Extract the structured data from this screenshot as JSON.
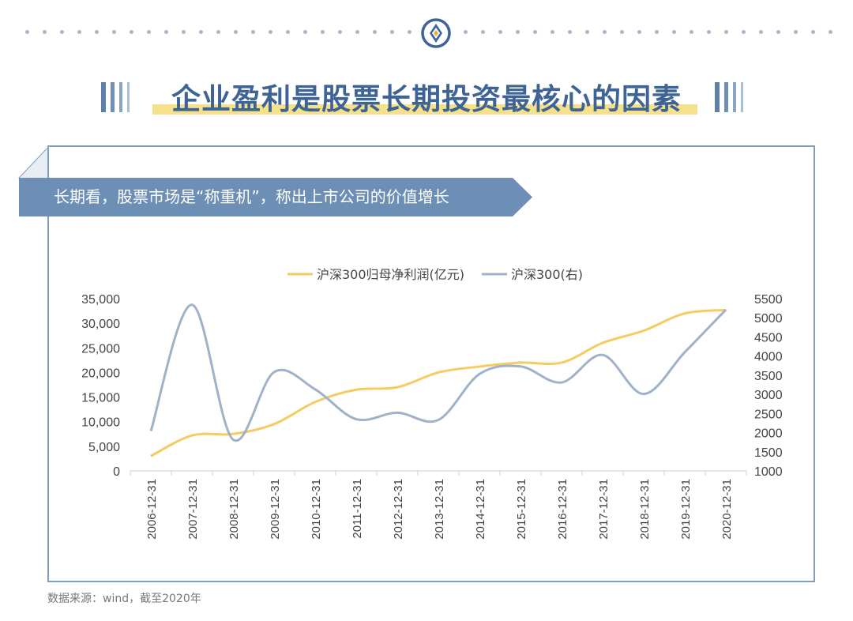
{
  "header": {
    "title": "企业盈利是股票长期投资最核心的因素",
    "banner_text": "长期看，股票市场是“称重机”，称出上市公司的价值增长",
    "logo_icon": "logo-icon"
  },
  "colors": {
    "accent_blue": "#6d8fb5",
    "title_blue": "#3d6494",
    "highlight_yellow": "#f5e08c",
    "profit_line": "#f5cb63",
    "index_line": "#9fb2c9"
  },
  "chart_data": {
    "type": "line",
    "title": "",
    "categories": [
      "2006-12-31",
      "2007-12-31",
      "2008-12-31",
      "2009-12-31",
      "2010-12-31",
      "2011-12-31",
      "2012-12-31",
      "2013-12-31",
      "2014-12-31",
      "2015-12-31",
      "2016-12-31",
      "2017-12-31",
      "2018-12-31",
      "2019-12-31",
      "2020-12-31"
    ],
    "series": [
      {
        "name": "沪深300归母净利润(亿元)",
        "axis": "left",
        "color": "#f5cb63",
        "values": [
          3000,
          7200,
          7500,
          9500,
          14000,
          16500,
          17000,
          20000,
          21200,
          22000,
          22000,
          26000,
          28500,
          32000,
          32700
        ]
      },
      {
        "name": "沪深300(右)",
        "axis": "right",
        "color": "#9fb2c9",
        "values": [
          2040,
          5340,
          1820,
          3580,
          3130,
          2350,
          2520,
          2330,
          3530,
          3730,
          3310,
          4030,
          3010,
          4100,
          5210
        ]
      }
    ],
    "y_left": {
      "min": 0,
      "max": 35000,
      "ticks": [
        "0",
        "5,000",
        "10,000",
        "15,000",
        "20,000",
        "25,000",
        "30,000",
        "35,000"
      ]
    },
    "y_right": {
      "min": 1000,
      "max": 5500,
      "ticks": [
        "1000",
        "1500",
        "2000",
        "2500",
        "3000",
        "3500",
        "4000",
        "4500",
        "5000",
        "5500"
      ]
    },
    "legend_position": "top-center",
    "grid": false
  },
  "footer": {
    "source": "数据来源：wind，截至2020年"
  }
}
